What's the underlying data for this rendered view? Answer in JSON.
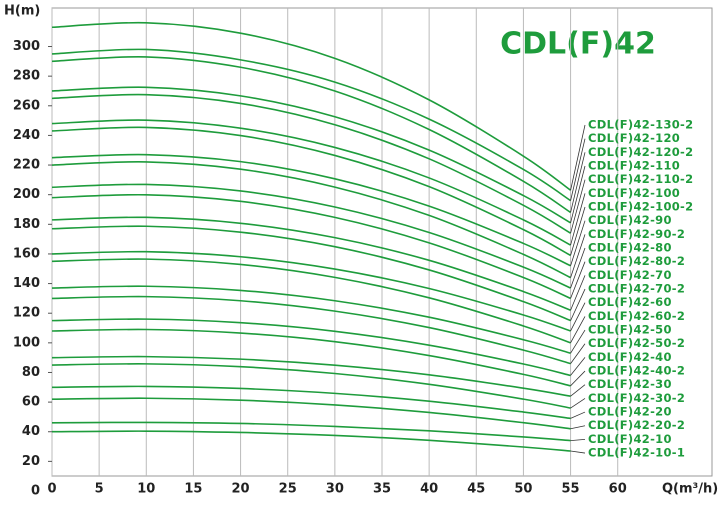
{
  "chart_data": {
    "type": "line",
    "title": "CDL(F)42",
    "y_label": "H(m)",
    "x_label": "Q(m³/h)",
    "xlim": [
      0,
      70
    ],
    "ylim": [
      0,
      326
    ],
    "xticks": [
      0,
      5,
      10,
      15,
      20,
      25,
      30,
      35,
      40,
      45,
      50,
      55,
      60
    ],
    "yticks": [
      0,
      20,
      40,
      60,
      80,
      100,
      120,
      140,
      160,
      180,
      200,
      220,
      240,
      260,
      280,
      300
    ],
    "grid": true,
    "color": "#1e9c3c",
    "x": [
      0,
      10,
      20,
      30,
      40,
      50,
      55
    ],
    "series": [
      {
        "name": "CDL(F)42-130-2",
        "values": [
          313,
          316,
          309,
          292,
          264,
          226,
          203
        ]
      },
      {
        "name": "CDL(F)42-120",
        "values": [
          295,
          298,
          291,
          276,
          251,
          217,
          196
        ]
      },
      {
        "name": "CDL(F)42-120-2",
        "values": [
          290,
          293,
          286,
          270,
          244,
          209,
          188
        ]
      },
      {
        "name": "CDL(F)42-110",
        "values": [
          270,
          272.5,
          266.7,
          252.6,
          230.1,
          199.4,
          181
        ]
      },
      {
        "name": "CDL(F)42-110-2",
        "values": [
          265,
          267.5,
          261.6,
          247.2,
          224.2,
          192.8,
          174
        ]
      },
      {
        "name": "CDL(F)42-100",
        "values": [
          248,
          250.3,
          244.9,
          231.9,
          211.3,
          183,
          166
        ]
      },
      {
        "name": "CDL(F)42-100-2",
        "values": [
          243,
          245.4,
          239.9,
          226.5,
          205.4,
          176.4,
          159
        ]
      },
      {
        "name": "CDL(F)42-90",
        "values": [
          225,
          227,
          222.3,
          210.7,
          192.3,
          167.1,
          152
        ]
      },
      {
        "name": "CDL(F)42-90-2",
        "values": [
          220,
          222.1,
          217.2,
          205.1,
          186,
          159.7,
          144
        ]
      },
      {
        "name": "CDL(F)42-80",
        "values": [
          205,
          206.9,
          202.5,
          191.7,
          174.5,
          151.1,
          137
        ]
      },
      {
        "name": "CDL(F)42-80-2",
        "values": [
          198,
          199.9,
          195.5,
          184.7,
          167.5,
          144.1,
          130
        ]
      },
      {
        "name": "CDL(F)42-70",
        "values": [
          183,
          184.7,
          180.7,
          171,
          155.7,
          134.6,
          122
        ]
      },
      {
        "name": "CDL(F)42-70-2",
        "values": [
          177,
          178.7,
          174.7,
          164.9,
          149.2,
          127.8,
          115
        ]
      },
      {
        "name": "CDL(F)42-60",
        "values": [
          160,
          161.5,
          158.1,
          149.8,
          136.7,
          118.8,
          108
        ]
      },
      {
        "name": "CDL(F)42-60-2",
        "values": [
          155,
          156.5,
          152.9,
          144.2,
          130.4,
          111.4,
          100
        ]
      },
      {
        "name": "CDL(F)42-50",
        "values": [
          137,
          138.2,
          135.4,
          128.4,
          117.3,
          102.1,
          93
        ]
      },
      {
        "name": "CDL(F)42-50-2",
        "values": [
          130,
          131.2,
          128.4,
          121.4,
          110.3,
          95.1,
          86
        ]
      },
      {
        "name": "CDL(F)42-40",
        "values": [
          115,
          116,
          113.6,
          107.8,
          98.4,
          85.7,
          78
        ]
      },
      {
        "name": "CDL(F)42-40-2",
        "values": [
          108,
          109,
          106.6,
          100.8,
          91.4,
          78.7,
          71
        ]
      },
      {
        "name": "CDL(F)42-30",
        "values": [
          90,
          90.7,
          89,
          84.9,
          78.4,
          69.4,
          64
        ]
      },
      {
        "name": "CDL(F)42-30-2",
        "values": [
          85,
          85.8,
          83.9,
          79.3,
          72,
          62,
          56
        ]
      },
      {
        "name": "CDL(F)42-20",
        "values": [
          70,
          70.6,
          69.2,
          65.9,
          60.6,
          53.3,
          49
        ]
      },
      {
        "name": "CDL(F)42-20-2",
        "values": [
          62,
          62.6,
          61.3,
          58.1,
          53,
          46.1,
          42
        ]
      },
      {
        "name": "CDL(F)42-10",
        "values": [
          46,
          46.3,
          45.6,
          43.6,
          40.6,
          36.5,
          34
        ]
      },
      {
        "name": "CDL(F)42-10-1",
        "values": [
          40,
          40.4,
          39.5,
          37.5,
          34.2,
          29.7,
          27
        ]
      }
    ]
  }
}
